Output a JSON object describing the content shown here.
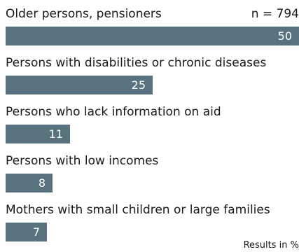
{
  "chart_data": {
    "type": "bar",
    "orientation": "horizontal",
    "categories": [
      "Older persons, pensioners",
      "Persons with disabilities or chronic diseases",
      "Persons who lack information on aid",
      "Persons with low incomes",
      "Mothers with small children or large families"
    ],
    "values": [
      50,
      25,
      11,
      8,
      7
    ],
    "sample_size_label": "n = 794",
    "units_label": "Results in %",
    "xlim": [
      0,
      50
    ],
    "grid": false,
    "colors": {
      "bar": "#587280",
      "value_text": "#ffffff"
    }
  }
}
